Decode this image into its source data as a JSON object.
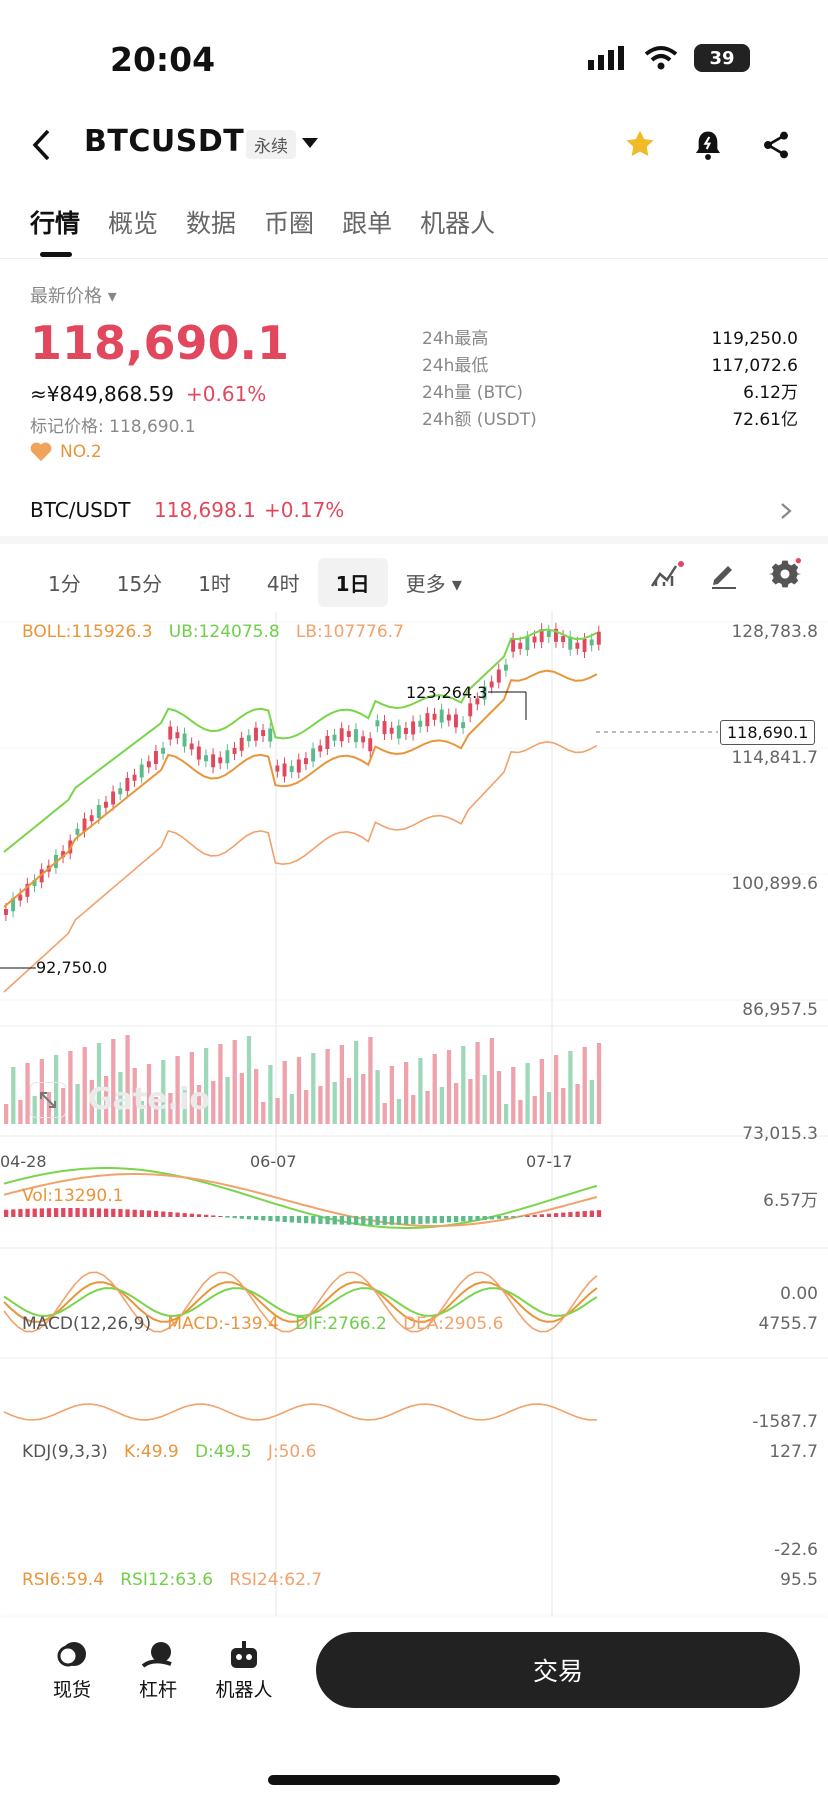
{
  "status": {
    "time": "20:04",
    "battery": "39"
  },
  "header": {
    "title": "BTCUSDT",
    "tag": "永续"
  },
  "tabs": [
    "行情",
    "概览",
    "数据",
    "币圈",
    "跟单",
    "机器人"
  ],
  "price": {
    "label": "最新价格",
    "last": "118,690.1",
    "cny": "≈¥849,868.59",
    "change": "+0.61%",
    "mark": "标记价格: 118,690.1",
    "rank": "NO.2"
  },
  "stats": [
    {
      "label": "24h最高",
      "value": "119,250.0"
    },
    {
      "label": "24h最低",
      "value": "117,072.6"
    },
    {
      "label": "24h量 (BTC)",
      "value": "6.12万"
    },
    {
      "label": "24h额 (USDT)",
      "value": "72.61亿"
    }
  ],
  "spot": {
    "pair": "BTC/USDT",
    "price": "118,698.1",
    "change": "+0.17%"
  },
  "intervals": [
    "1分",
    "15分",
    "1时",
    "4时",
    "1日",
    "更多"
  ],
  "active_interval": "1日",
  "indicators": {
    "boll": "BOLL:115926.3",
    "ub": "UB:124075.8",
    "lb": "LB:107776.7",
    "vol": "Vol:13290.1",
    "macd_name": "MACD(12,26,9)",
    "macd": "MACD:-139.4",
    "dif": "DIF:2766.2",
    "dea": "DEA:2905.6",
    "kdj_name": "KDJ(9,3,3)",
    "k": "K:49.9",
    "d": "D:49.5",
    "j": "J:50.6",
    "rsi6": "RSI6:59.4",
    "rsi12": "RSI12:63.6",
    "rsi24": "RSI24:62.7"
  },
  "chart_data": {
    "type": "candlestick",
    "y_axis_labels": [
      "128,783.8",
      "114,841.7",
      "100,899.6",
      "86,957.5",
      "73,015.3"
    ],
    "x_axis_labels": [
      "04-28",
      "06-07",
      "07-17"
    ],
    "current_price_tag": "118,690.1",
    "high_marker": "123,264.3",
    "low_marker": "92,750.0",
    "volume_axis": [
      "6.57万",
      "0.00"
    ],
    "macd_axis": [
      "4755.7",
      "-1587.7"
    ],
    "kdj_axis": [
      "127.7",
      "-22.6"
    ],
    "rsi_axis": [
      "95.5"
    ]
  },
  "watermark": "Gate.io",
  "bottom_nav": [
    "现货",
    "杠杆",
    "机器人"
  ],
  "trade_button": "交易",
  "colors": {
    "up": "#e2485d",
    "down": "#5dba8a",
    "boll_mid": "#e9953a",
    "boll_ub": "#7ad54a",
    "boll_lb": "#f1a26a"
  }
}
